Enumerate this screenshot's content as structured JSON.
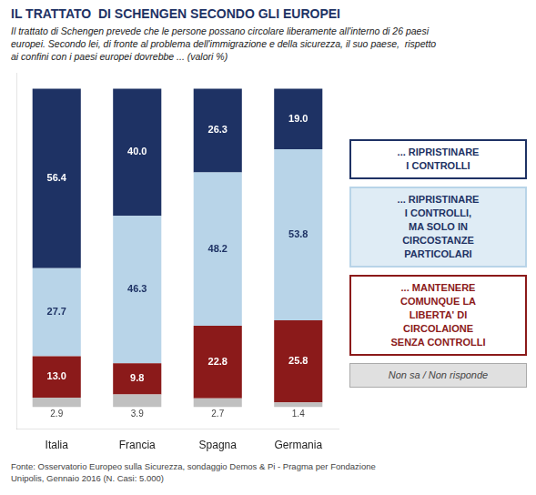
{
  "chart_data": {
    "type": "bar",
    "title": "IL TRATTATO  DI SCHENGEN SECONDO GLI EUROPEI",
    "subtitle": "Il trattato di Schengen prevede che le persone possano circolare liberamente all'interno di 26 paesi\neuropei. Secondo lei, di fronte al problema dell'immigrazione e della sicurezza, il suo paese,  rispetto\nai confini con i paesi europei dovrebbe ... (valori %)",
    "footer": "Fonte: Osservatorio Europeo sulla Sicurezza, sondaggio Demos & Pi - Pragma per Fondazione\nUnipolis, Gennaio 2016 (N. Casi: 5.000)",
    "categories": [
      "Italia",
      "Francia",
      "Spagna",
      "Germania"
    ],
    "series": [
      {
        "name": "Non sa / Non risponde",
        "color": "#c0c0c0",
        "values": [
          2.9,
          3.9,
          2.7,
          1.4
        ],
        "value_labels": [
          "2.9",
          "3.9",
          "2.7",
          "1.4"
        ]
      },
      {
        "name": "... MANTENERE\nCOMUNQUE LA\nLIBERTA' DI\nCIRCOLAIONE\nSENZA CONTROLLI",
        "color": "#8b1a1a",
        "values": [
          13.0,
          9.8,
          22.8,
          25.8
        ],
        "value_labels": [
          "13.0",
          "9.8",
          "22.8",
          "25.8"
        ]
      },
      {
        "name": "... RIPRISTINARE\nI CONTROLLI,\nMA SOLO IN\nCIRCOSTANZE\nPARTICOLARI",
        "color": "#b8d4e8",
        "values": [
          27.7,
          46.3,
          48.2,
          53.8
        ],
        "value_labels": [
          "27.7",
          "46.3",
          "48.2",
          "53.8"
        ]
      },
      {
        "name": "... RIPRISTINARE\nI CONTROLLI",
        "color": "#1e3264",
        "values": [
          56.4,
          40.0,
          26.3,
          19.0
        ],
        "value_labels": [
          "56.4",
          "40.0",
          "26.3",
          "19.0"
        ]
      }
    ],
    "stacked": true,
    "data_labels": true,
    "ylim": [
      -7,
      105
    ],
    "yticks": [],
    "tick_labels": "x",
    "grid": false
  }
}
